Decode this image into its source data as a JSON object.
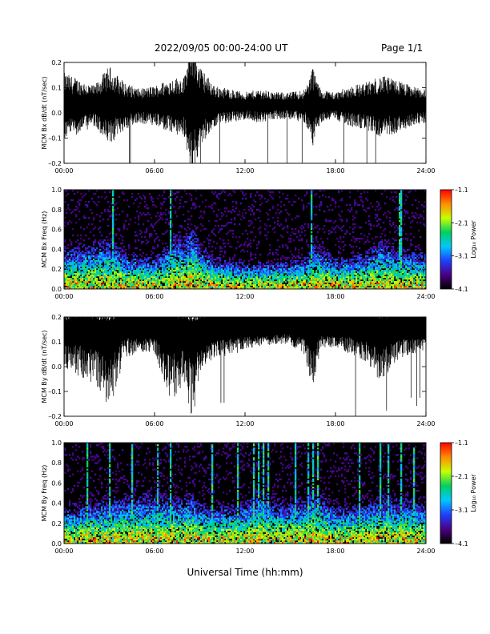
{
  "header": {
    "title": "2022/09/05  00:00-24:00 UT",
    "page": "Page 1/1"
  },
  "footer": {
    "xlabel": "Universal Time (hh:mm)"
  },
  "colors": {
    "trace": "#000000",
    "background": "#ffffff",
    "colormap": [
      "#000000",
      "#4b0082",
      "#1f3fff",
      "#00c8ff",
      "#00d060",
      "#c8ff00",
      "#ff8c00",
      "#ff0000"
    ]
  },
  "chart_data": [
    {
      "type": "line",
      "ylabel": "MCM Bx dB/dt (nT/sec)",
      "x_ticks": [
        "00:00",
        "06:00",
        "12:00",
        "18:00",
        "24:00"
      ],
      "xlim": [
        0,
        24
      ],
      "ylim": [
        -0.2,
        0.2
      ],
      "y_ticks": [
        "-0.2",
        "-0.1",
        "0.0",
        "0.1",
        "0.2"
      ],
      "series": [
        {
          "x": [
            0,
            1,
            2,
            3,
            4,
            5,
            6,
            7,
            8,
            8.5,
            9,
            10,
            11,
            12,
            13,
            14,
            15,
            16,
            16.5,
            17,
            18,
            19,
            20,
            21,
            22,
            23,
            24
          ],
          "amplitude": [
            0.1,
            0.08,
            0.06,
            0.12,
            0.07,
            0.05,
            0.06,
            0.08,
            0.09,
            0.22,
            0.12,
            0.06,
            0.05,
            0.04,
            0.05,
            0.04,
            0.04,
            0.05,
            0.12,
            0.05,
            0.04,
            0.06,
            0.07,
            0.09,
            0.08,
            0.06,
            0.05
          ]
        }
      ]
    },
    {
      "type": "heatmap",
      "ylabel": "MCM Bx Freq (Hz)",
      "x_ticks": [
        "00:00",
        "06:00",
        "12:00",
        "18:00",
        "24:00"
      ],
      "xlim": [
        0,
        24
      ],
      "ylim": [
        0.0,
        1.0
      ],
      "y_ticks": [
        "0.0",
        "0.2",
        "0.4",
        "0.6",
        "0.8",
        "1.0"
      ],
      "colorbar": {
        "label": "Log₁₀ Power",
        "ticks": [
          "-1.1",
          "-2.1",
          "-3.1",
          "-4.1"
        ],
        "range": [
          -4.1,
          -1.1
        ]
      },
      "activity_x": [
        0,
        2,
        3,
        4,
        6,
        7,
        7.2,
        8,
        8.5,
        9,
        10,
        12,
        14,
        16,
        16.5,
        18,
        20,
        21,
        22,
        24
      ],
      "activity_level": [
        0.45,
        0.5,
        0.55,
        0.4,
        0.35,
        0.5,
        0.6,
        0.55,
        0.7,
        0.5,
        0.35,
        0.3,
        0.3,
        0.35,
        0.5,
        0.35,
        0.4,
        0.55,
        0.45,
        0.4
      ],
      "spikes": [
        3.2,
        7.1,
        16.4,
        22.3
      ]
    },
    {
      "type": "line",
      "ylabel": "MCM By dB/dt (nT/sec)",
      "x_ticks": [
        "00:00",
        "06:00",
        "12:00",
        "18:00",
        "24:00"
      ],
      "xlim": [
        0,
        24
      ],
      "ylim": [
        -0.2,
        0.2
      ],
      "y_ticks": [
        "-0.2",
        "-0.1",
        "0.0",
        "0.1",
        "0.2"
      ],
      "series": [
        {
          "x": [
            0,
            1,
            2,
            3,
            4,
            5,
            6,
            7,
            8,
            8.5,
            9,
            10,
            11,
            12,
            13,
            14,
            15,
            16,
            16.5,
            17,
            18,
            19,
            20,
            21,
            22,
            23,
            24
          ],
          "baseline": [
            0.12,
            0.14,
            0.13,
            0.12,
            0.15,
            0.14,
            0.15,
            0.14,
            0.13,
            0.12,
            0.13,
            0.14,
            0.14,
            0.15,
            0.14,
            0.15,
            0.15,
            0.14,
            0.14,
            0.15,
            0.14,
            0.15,
            0.14,
            0.13,
            0.14,
            0.15,
            0.14
          ],
          "dip_depth": [
            0.12,
            0.18,
            0.2,
            0.3,
            0.12,
            0.08,
            0.1,
            0.3,
            0.2,
            0.35,
            0.15,
            0.1,
            0.1,
            0.08,
            0.06,
            0.06,
            0.06,
            0.1,
            0.25,
            0.08,
            0.06,
            0.1,
            0.12,
            0.2,
            0.12,
            0.1,
            0.08
          ]
        }
      ]
    },
    {
      "type": "heatmap",
      "ylabel": "MCM By Freq (Hz)",
      "x_ticks": [
        "00:00",
        "06:00",
        "12:00",
        "18:00",
        "24:00"
      ],
      "xlim": [
        0,
        24
      ],
      "ylim": [
        0.0,
        1.0
      ],
      "y_ticks": [
        "0.0",
        "0.2",
        "0.4",
        "0.6",
        "0.8",
        "1.0"
      ],
      "colorbar": {
        "label": "Log₁₀ Power",
        "ticks": [
          "-1.1",
          "-2.1",
          "-3.1",
          "-4.1"
        ],
        "range": [
          -4.1,
          -1.1
        ]
      },
      "activity_x": [
        0,
        2,
        3,
        4,
        6,
        7,
        8,
        8.5,
        9,
        10,
        12,
        13,
        14,
        16,
        16.5,
        18,
        20,
        21,
        22,
        24
      ],
      "activity_level": [
        0.4,
        0.45,
        0.5,
        0.5,
        0.55,
        0.5,
        0.5,
        0.55,
        0.45,
        0.4,
        0.45,
        0.55,
        0.45,
        0.5,
        0.6,
        0.4,
        0.45,
        0.5,
        0.5,
        0.45
      ],
      "spikes": [
        1.5,
        3.0,
        4.5,
        6.2,
        7.1,
        9.8,
        11.5,
        12.6,
        12.9,
        13.2,
        13.5,
        15.3,
        16.2,
        16.5,
        16.8,
        19.6,
        21.0,
        21.5,
        22.4,
        23.2
      ]
    }
  ]
}
